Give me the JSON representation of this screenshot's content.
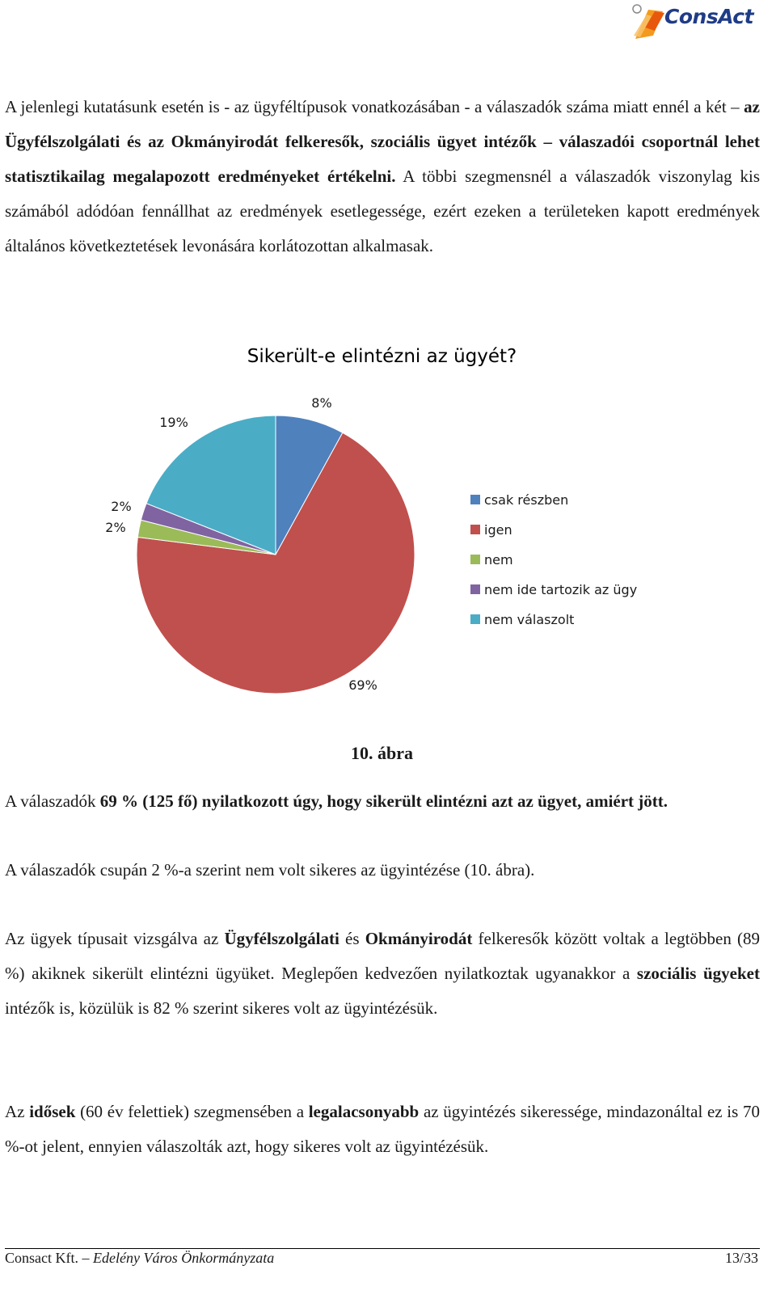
{
  "header": {
    "logo_text": "ConsAct"
  },
  "intro": {
    "t1": "A jelenlegi kutatásunk esetén is - az ügyféltípusok vonatkozásában - a válaszadók száma miatt ennél a két – ",
    "b1": "az Ügyfélszolgálati és az Okmányirodát felkeresők, szociális ügyet intézők – válaszadói csoportnál lehet statisztikailag megalapozott eredményeket értékelni.",
    "t2": " A többi szegmensnél a válaszadók viszonylag kis számából adódóan fennállhat az eredmények esetlegessége, ezért ezeken a területeken kapott eredmények általános következtetések levonására korlátozottan alkalmasak."
  },
  "chart_data": {
    "type": "pie",
    "title": "Sikerült-e elintézni az ügyét?",
    "legend_position": "right",
    "slices": [
      {
        "label": "csak részben",
        "value": 8,
        "display": "8%",
        "color": "#4f81bd"
      },
      {
        "label": "igen",
        "value": 69,
        "display": "69%",
        "color": "#c0504d"
      },
      {
        "label": "nem",
        "value": 2,
        "display": "2%",
        "color": "#9bbb59"
      },
      {
        "label": "nem ide tartozik az ügy",
        "value": 2,
        "display": "2%",
        "color": "#8064a2"
      },
      {
        "label": "nem válaszolt",
        "value": 19,
        "display": "19%",
        "color": "#4bacc6"
      }
    ]
  },
  "caption": "10. ábra",
  "result": {
    "t1": "A válaszadók ",
    "b1": "69 % (125 fő) nyilatkozott úgy, hogy sikerült elintézni azt az ügyet, amiért jött.",
    "line2": "A válaszadók csupán 2 %-a szerint nem volt sikeres az ügyintézése (10. ábra)."
  },
  "types": {
    "t1": "Az ügyek típusait vizsgálva az ",
    "b1": "Ügyfélszolgálati",
    "t2": " és ",
    "b2": "Okmányirodát",
    "t3": " felkeresők között voltak a legtöbben (89 %) akiknek sikerült elintézni ügyüket. Meglepően kedvezően nyilatkoztak ugyanakkor a ",
    "b3": "szociális ügyeket",
    "t4": " intézők is, közülük is 82 % szerint sikeres volt az ügyintézésük."
  },
  "elderly": {
    "t1": "Az ",
    "b1": "idősek",
    "t2": " (60 év felettiek) szegmensében a ",
    "b2": "legalacsonyabb",
    "t3": " az ügyintézés sikeressége, mindazonáltal ez is 70 %-ot jelent, ennyien válaszolták azt, hogy sikeres volt az ügyintézésük."
  },
  "footer": {
    "company": "Consact Kft.",
    "sep": " – ",
    "client": "Edelény Város Önkormányzata",
    "page": "13/33"
  }
}
